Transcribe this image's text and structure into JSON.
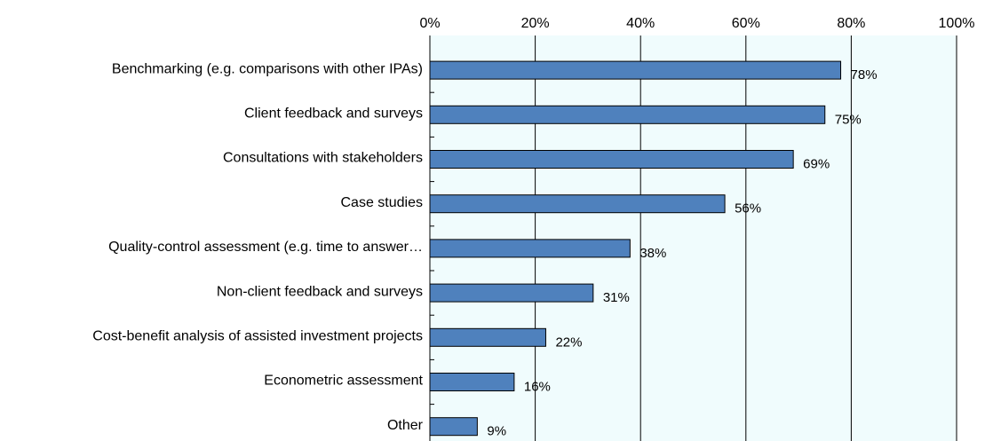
{
  "chart_data": {
    "type": "bar",
    "orientation": "horizontal",
    "categories": [
      "Benchmarking (e.g. comparisons with other IPAs)",
      "Client feedback and surveys",
      "Consultations with stakeholders",
      "Case studies",
      "Quality-control assessment  (e.g. time to answer…",
      "Non-client feedback and surveys",
      "Cost-benefit analysis of assisted investment projects",
      "Econometric assessment",
      "Other"
    ],
    "values": [
      78,
      75,
      69,
      56,
      38,
      31,
      22,
      16,
      9
    ],
    "value_labels": [
      "78%",
      "75%",
      "69%",
      "56%",
      "38%",
      "31%",
      "22%",
      "16%",
      "9%"
    ],
    "color": "#4f81bd",
    "xlim": [
      0,
      100
    ],
    "xticks": [
      {
        "value": 0,
        "label": "0%"
      },
      {
        "value": 20,
        "label": "20%"
      },
      {
        "value": 40,
        "label": "40%"
      },
      {
        "value": 60,
        "label": "60%"
      },
      {
        "value": 80,
        "label": "80%"
      },
      {
        "value": 100,
        "label": "100%"
      }
    ],
    "grid": true
  }
}
